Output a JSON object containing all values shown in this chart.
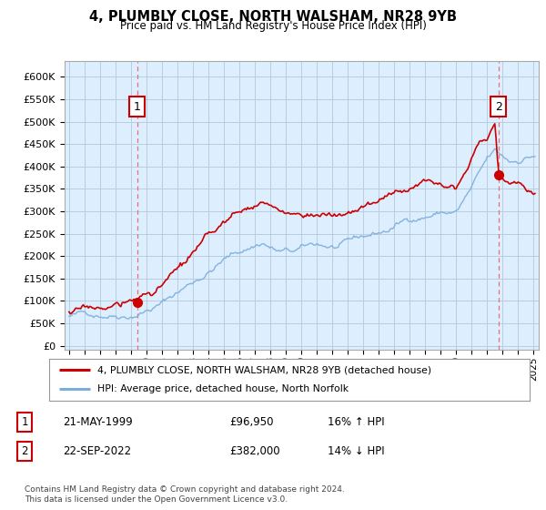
{
  "title": "4, PLUMBLY CLOSE, NORTH WALSHAM, NR28 9YB",
  "subtitle": "Price paid vs. HM Land Registry's House Price Index (HPI)",
  "yticks": [
    0,
    50000,
    100000,
    150000,
    200000,
    250000,
    300000,
    350000,
    400000,
    450000,
    500000,
    550000,
    600000
  ],
  "ylim": [
    -8000,
    635000
  ],
  "xlim_start": 1994.7,
  "xlim_end": 2025.3,
  "sale1_x": 1999.388,
  "sale1_y": 96950,
  "sale2_x": 2022.722,
  "sale2_y": 382000,
  "legend_line1": "4, PLUMBLY CLOSE, NORTH WALSHAM, NR28 9YB (detached house)",
  "legend_line2": "HPI: Average price, detached house, North Norfolk",
  "table_row1": [
    "1",
    "21-MAY-1999",
    "£96,950",
    "16% ↑ HPI"
  ],
  "table_row2": [
    "2",
    "22-SEP-2022",
    "£382,000",
    "14% ↓ HPI"
  ],
  "footer": "Contains HM Land Registry data © Crown copyright and database right 2024.\nThis data is licensed under the Open Government Licence v3.0.",
  "line_color_red": "#cc0000",
  "line_color_blue": "#7aaddb",
  "chart_bg_color": "#ddeeff",
  "background_color": "#ffffff",
  "grid_color": "#b8cfe0",
  "sale_vline_color": "#e87070"
}
